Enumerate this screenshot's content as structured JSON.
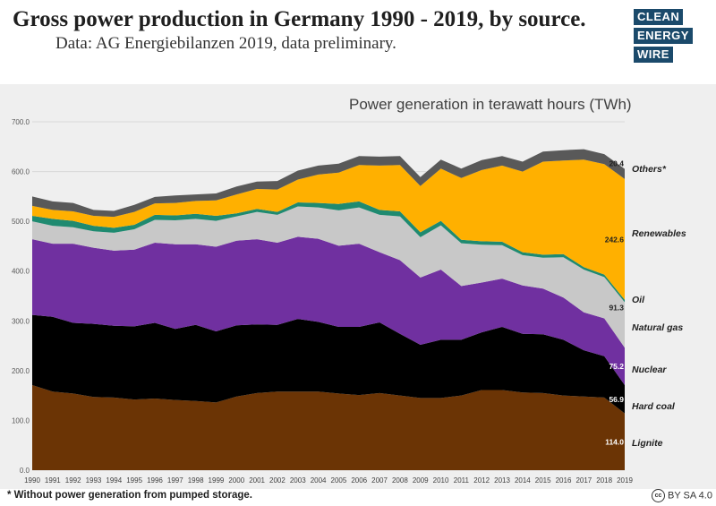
{
  "title": "Gross power production in Germany 1990 - 2019, by source.",
  "subtitle": "Data: AG Energiebilanzen 2019, data preliminary.",
  "logo_lines": [
    "CLEAN",
    "ENERGY",
    "WIRE"
  ],
  "footnote": "* Without power generation from pumped storage.",
  "license": "BY SA 4.0",
  "license_icon": "cc",
  "chart_data": {
    "type": "area",
    "stacked": true,
    "title": "Power generation in terawatt hours (TWh)",
    "xlabel": "",
    "ylabel": "",
    "ylim": [
      0,
      700
    ],
    "yticks": [
      "0.0",
      "100.0",
      "200.0",
      "300.0",
      "400.0",
      "500.0",
      "600.0",
      "700.0"
    ],
    "x": [
      "1990",
      "1991",
      "1992",
      "1993",
      "1994",
      "1995",
      "1996",
      "1997",
      "1998",
      "1999",
      "2000",
      "2001",
      "2002",
      "2003",
      "2004",
      "2005",
      "2006",
      "2007",
      "2008",
      "2009",
      "2010",
      "2011",
      "2012",
      "2013",
      "2014",
      "2015",
      "2016",
      "2017",
      "2018",
      "2019"
    ],
    "series": [
      {
        "name": "Lignite",
        "color": "#6b3405",
        "values": [
          171,
          158,
          154,
          147,
          146,
          142,
          144,
          141,
          139,
          136,
          148,
          155,
          158,
          158,
          158,
          154,
          151,
          155,
          150,
          145,
          145,
          150,
          161,
          161,
          156,
          155,
          150,
          148,
          146,
          114
        ]
      },
      {
        "name": "Hard coal",
        "color": "#000000",
        "values": [
          141,
          150,
          142,
          147,
          144,
          147,
          152,
          143,
          153,
          143,
          143,
          138,
          134,
          146,
          140,
          134,
          137,
          142,
          124,
          107,
          117,
          112,
          116,
          127,
          118,
          118,
          112,
          93,
          83,
          56.9
        ]
      },
      {
        "name": "Nuclear",
        "color": "#7030a0",
        "values": [
          152,
          147,
          159,
          153,
          151,
          154,
          161,
          170,
          162,
          170,
          170,
          171,
          165,
          165,
          167,
          163,
          167,
          141,
          148,
          135,
          141,
          108,
          100,
          97,
          97,
          92,
          85,
          76,
          76,
          75.2
        ]
      },
      {
        "name": "Natural gas",
        "color": "#c8c8c8",
        "values": [
          36,
          36,
          33,
          33,
          36,
          41,
          46,
          48,
          51,
          52,
          49,
          55,
          56,
          61,
          63,
          71,
          73,
          75,
          88,
          81,
          89,
          86,
          76,
          67,
          61,
          62,
          81,
          86,
          83,
          91.3
        ]
      },
      {
        "name": "Oil",
        "color": "#1f8a70",
        "values": [
          11,
          14,
          13,
          11,
          10,
          9,
          10,
          10,
          10,
          10,
          6,
          6,
          6,
          8,
          9,
          13,
          12,
          10,
          10,
          10,
          9,
          7,
          7,
          7,
          6,
          6,
          6,
          5,
          5,
          5
        ]
      },
      {
        "name": "Renewables",
        "color": "#ffb000",
        "values": [
          20,
          18,
          19,
          20,
          22,
          26,
          23,
          25,
          26,
          31,
          38,
          40,
          45,
          46,
          57,
          63,
          73,
          89,
          93,
          93,
          105,
          124,
          143,
          153,
          162,
          187,
          188,
          216,
          222,
          242.6
        ]
      },
      {
        "name": "Others*",
        "color": "#595959",
        "values": [
          19,
          17,
          17,
          12,
          12,
          14,
          13,
          15,
          13,
          14,
          16,
          15,
          17,
          18,
          18,
          18,
          18,
          18,
          18,
          18,
          18,
          19,
          20,
          19,
          20,
          20,
          21,
          21,
          20,
          20.4
        ]
      }
    ],
    "legend_position": "right",
    "data_labels": [
      {
        "series": "Others*",
        "value": "20.4"
      },
      {
        "series": "Renewables",
        "value": "242.6"
      },
      {
        "series": "Natural gas",
        "value": "91.3"
      },
      {
        "series": "Nuclear",
        "value": "75.2"
      },
      {
        "series": "Hard coal",
        "value": "56.9"
      },
      {
        "series": "Lignite",
        "value": "114.0"
      }
    ]
  }
}
